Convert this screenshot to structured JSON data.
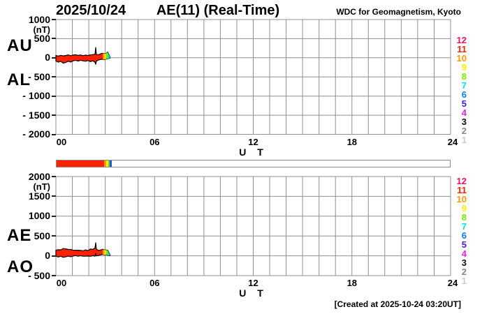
{
  "header": {
    "date": "2025/10/24",
    "title": "AE(11) (Real-Time)",
    "org": "WDC for Geomagnetism, Kyoto"
  },
  "footer": {
    "created": "[Created at 2025-10-24 03:20UT]"
  },
  "stations_legend": {
    "description": "number of contributing stations color code, 12 down to 1",
    "items": [
      {
        "n": "12",
        "color": "#ee1166"
      },
      {
        "n": "11",
        "color": "#ff2200"
      },
      {
        "n": "10",
        "color": "#ff9900"
      },
      {
        "n": "9",
        "color": "#ffee00"
      },
      {
        "n": "8",
        "color": "#77ee00"
      },
      {
        "n": "7",
        "color": "#00ddee"
      },
      {
        "n": "6",
        "color": "#1177ff"
      },
      {
        "n": "5",
        "color": "#4422dd"
      },
      {
        "n": "4",
        "color": "#ee22ee"
      },
      {
        "n": "3",
        "color": "#111111"
      },
      {
        "n": "2",
        "color": "#888888"
      },
      {
        "n": "1",
        "color": "#cccccc"
      }
    ]
  },
  "availability_bar": {
    "total_hours": 24,
    "segments": [
      {
        "from": 0.0,
        "to": 2.89,
        "color": "#ff2200"
      },
      {
        "from": 2.89,
        "to": 3.02,
        "color": "#ff9900"
      },
      {
        "from": 3.02,
        "to": 3.14,
        "color": "#ffee00"
      },
      {
        "from": 3.14,
        "to": 3.24,
        "color": "#66dd11"
      },
      {
        "from": 3.24,
        "to": 3.36,
        "color": "#2255ee"
      }
    ]
  },
  "panels": [
    {
      "id": "au-al",
      "left_labels": [
        "AU",
        "AL"
      ],
      "unit": "(nT)",
      "yticks": [
        {
          "v": 1000,
          "l": "1000"
        },
        {
          "v": 500,
          "l": "500"
        },
        {
          "v": 0,
          "l": "0"
        },
        {
          "v": -500,
          "l": "- 500"
        },
        {
          "v": -1000,
          "l": "- 1000"
        },
        {
          "v": -1500,
          "l": "- 1500"
        },
        {
          "v": -2000,
          "l": "- 2000"
        }
      ],
      "xticks": [
        {
          "v": 0,
          "l": "00"
        },
        {
          "v": 6,
          "l": "06"
        },
        {
          "v": 12,
          "l": "12"
        },
        {
          "v": 18,
          "l": "18"
        },
        {
          "v": 24,
          "l": "24"
        }
      ],
      "xlabel": "U T"
    },
    {
      "id": "ae-ao",
      "left_labels": [
        "AE",
        "AO"
      ],
      "unit": "(nT)",
      "yticks": [
        {
          "v": 2000,
          "l": "2000"
        },
        {
          "v": 1500,
          "l": "1500"
        },
        {
          "v": 1000,
          "l": "1000"
        },
        {
          "v": 500,
          "l": "500"
        },
        {
          "v": 0,
          "l": "0"
        },
        {
          "v": -500,
          "l": "- 500"
        }
      ],
      "xticks": [
        {
          "v": 0,
          "l": "00"
        },
        {
          "v": 6,
          "l": "06"
        },
        {
          "v": 12,
          "l": "12"
        },
        {
          "v": 18,
          "l": "18"
        },
        {
          "v": 24,
          "l": "24"
        }
      ],
      "xlabel": "U T"
    }
  ],
  "chart_data": [
    {
      "type": "area",
      "title": "AU and AL indices, 2025/10/24 real-time",
      "xlabel": "U T",
      "ylabel": "(nT)",
      "xlim": [
        0,
        24
      ],
      "ylim": [
        -2000,
        1000
      ],
      "grid": true,
      "band_color": "#ff2200",
      "x": [
        0,
        0.15,
        0.3,
        0.45,
        0.6,
        0.75,
        0.9,
        1.05,
        1.2,
        1.35,
        1.5,
        1.65,
        1.8,
        1.95,
        2.1,
        2.25,
        2.38,
        2.42,
        2.46,
        2.55,
        2.65,
        2.75,
        2.85,
        2.95,
        3.05,
        3.15,
        3.29
      ],
      "series": [
        {
          "name": "AU",
          "values": [
            60,
            45,
            65,
            50,
            60,
            75,
            55,
            70,
            80,
            60,
            75,
            55,
            70,
            60,
            75,
            85,
            90,
            270,
            90,
            80,
            90,
            110,
            120,
            105,
            110,
            150,
            20
          ]
        },
        {
          "name": "AL",
          "values": [
            -85,
            -115,
            -90,
            -140,
            -120,
            -90,
            -110,
            -80,
            -65,
            -85,
            -65,
            -80,
            -90,
            -70,
            -100,
            -80,
            -115,
            -170,
            -90,
            -65,
            -50,
            -40,
            -40,
            -45,
            -30,
            -25,
            -8
          ]
        }
      ],
      "tail_segments": [
        {
          "from": 2.85,
          "to": 2.95,
          "color": "#ff9900"
        },
        {
          "from": 2.95,
          "to": 3.05,
          "color": "#ffee00"
        },
        {
          "from": 3.05,
          "to": 3.17,
          "color": "#77ee00"
        },
        {
          "from": 3.17,
          "to": 3.29,
          "color": "#00ddee"
        }
      ]
    },
    {
      "type": "area",
      "title": "AE and AO indices, 2025/10/24 real-time",
      "xlabel": "U T",
      "ylabel": "(nT)",
      "xlim": [
        0,
        24
      ],
      "ylim": [
        -500,
        2000
      ],
      "grid": true,
      "band_color": "#ff2200",
      "x": [
        0,
        0.15,
        0.3,
        0.45,
        0.6,
        0.75,
        0.9,
        1.05,
        1.2,
        1.35,
        1.5,
        1.65,
        1.8,
        1.95,
        2.1,
        2.25,
        2.38,
        2.42,
        2.46,
        2.55,
        2.65,
        2.75,
        2.85,
        2.95,
        3.05,
        3.15,
        3.29
      ],
      "series": [
        {
          "name": "AE",
          "values": [
            140,
            155,
            150,
            185,
            175,
            160,
            160,
            140,
            140,
            140,
            135,
            125,
            150,
            130,
            170,
            160,
            200,
            330,
            175,
            140,
            140,
            150,
            165,
            150,
            145,
            140,
            25
          ]
        },
        {
          "name": "AO",
          "values": [
            -10,
            -30,
            -10,
            -38,
            -25,
            -8,
            -23,
            -5,
            5,
            -10,
            3,
            -10,
            -10,
            -5,
            -13,
            3,
            -10,
            60,
            0,
            5,
            15,
            30,
            35,
            25,
            25,
            18,
            5
          ]
        }
      ],
      "tail_segments": [
        {
          "from": 2.85,
          "to": 2.95,
          "color": "#ff9900"
        },
        {
          "from": 2.95,
          "to": 3.05,
          "color": "#ffee00"
        },
        {
          "from": 3.05,
          "to": 3.17,
          "color": "#77ee00"
        },
        {
          "from": 3.17,
          "to": 3.29,
          "color": "#00ddee"
        }
      ]
    }
  ]
}
